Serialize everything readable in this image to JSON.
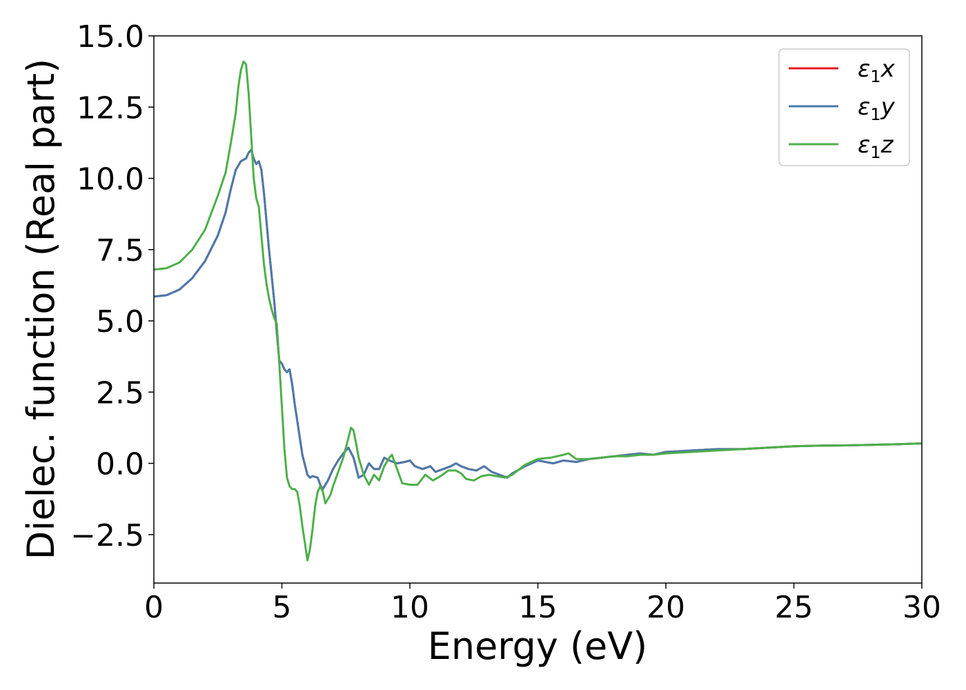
{
  "chart_data": {
    "type": "line",
    "title": "",
    "xlabel": "Energy (eV)",
    "ylabel": "Dielec. function (Real part)",
    "xlim": [
      0,
      30
    ],
    "ylim": [
      -4.2,
      15.0
    ],
    "xticks": [
      0,
      5,
      10,
      15,
      20,
      25,
      30
    ],
    "xtick_labels": [
      "0",
      "5",
      "10",
      "15",
      "20",
      "25",
      "30"
    ],
    "yticks": [
      -2.5,
      0.0,
      2.5,
      5.0,
      7.5,
      10.0,
      12.5,
      15.0
    ],
    "ytick_labels": [
      "−2.5",
      "0.0",
      "2.5",
      "5.0",
      "7.5",
      "10.0",
      "12.5",
      "15.0"
    ],
    "grid": false,
    "legend_position": "top-right",
    "series": [
      {
        "name": "ε1x",
        "legend_main": "ε",
        "legend_sub": "1",
        "legend_var": "x",
        "color": "#e41a1c",
        "x": [
          0.0,
          0.5,
          1.0,
          1.5,
          2.0,
          2.5,
          2.8,
          3.0,
          3.2,
          3.4,
          3.6,
          3.7,
          3.8,
          3.9,
          4.0,
          4.1,
          4.2,
          4.3,
          4.5,
          4.7,
          4.8,
          4.9,
          5.0,
          5.1,
          5.2,
          5.3,
          5.4,
          5.5,
          5.6,
          5.8,
          6.0,
          6.1,
          6.2,
          6.4,
          6.5,
          6.6,
          6.8,
          7.0,
          7.2,
          7.4,
          7.6,
          7.8,
          8.0,
          8.2,
          8.4,
          8.6,
          8.8,
          9.0,
          9.2,
          9.5,
          9.8,
          10.0,
          10.2,
          10.5,
          10.8,
          11.0,
          11.3,
          11.6,
          11.8,
          12.0,
          12.3,
          12.6,
          12.9,
          13.2,
          13.5,
          13.8,
          14.0,
          14.5,
          15.0,
          15.3,
          15.6,
          16.0,
          16.5,
          17.0,
          17.5,
          18.0,
          18.5,
          19.0,
          19.5,
          20.0,
          21.0,
          22.0,
          23.0,
          24.0,
          25.0,
          26.0,
          27.0,
          28.0,
          29.0,
          30.0
        ],
        "y": [
          5.85,
          5.9,
          6.1,
          6.5,
          7.1,
          8.0,
          8.8,
          9.6,
          10.3,
          10.6,
          10.7,
          10.9,
          11.0,
          10.7,
          10.5,
          10.6,
          10.3,
          9.5,
          7.5,
          5.7,
          4.6,
          3.6,
          3.5,
          3.3,
          3.2,
          3.3,
          2.8,
          2.1,
          1.5,
          0.3,
          -0.4,
          -0.5,
          -0.45,
          -0.5,
          -0.75,
          -0.9,
          -0.6,
          -0.2,
          0.1,
          0.35,
          0.55,
          0.2,
          -0.5,
          -0.4,
          0.0,
          -0.2,
          -0.2,
          0.2,
          0.1,
          0.0,
          0.05,
          0.1,
          -0.1,
          -0.2,
          -0.1,
          -0.3,
          -0.2,
          -0.1,
          0.0,
          -0.1,
          -0.2,
          -0.25,
          -0.1,
          -0.3,
          -0.4,
          -0.5,
          -0.35,
          -0.1,
          0.1,
          0.05,
          0.0,
          0.1,
          0.05,
          0.15,
          0.2,
          0.25,
          0.3,
          0.35,
          0.3,
          0.4,
          0.45,
          0.5,
          0.5,
          0.55,
          0.6,
          0.62,
          0.63,
          0.65,
          0.67,
          0.7
        ]
      },
      {
        "name": "ε1y",
        "legend_main": "ε",
        "legend_sub": "1",
        "legend_var": "y",
        "color": "#4a7aab",
        "x": [
          0.0,
          0.5,
          1.0,
          1.5,
          2.0,
          2.5,
          2.8,
          3.0,
          3.2,
          3.4,
          3.6,
          3.7,
          3.8,
          3.9,
          4.0,
          4.1,
          4.2,
          4.3,
          4.5,
          4.7,
          4.8,
          4.9,
          5.0,
          5.1,
          5.2,
          5.3,
          5.4,
          5.5,
          5.6,
          5.8,
          6.0,
          6.1,
          6.2,
          6.4,
          6.5,
          6.6,
          6.8,
          7.0,
          7.2,
          7.4,
          7.6,
          7.8,
          8.0,
          8.2,
          8.4,
          8.6,
          8.8,
          9.0,
          9.2,
          9.5,
          9.8,
          10.0,
          10.2,
          10.5,
          10.8,
          11.0,
          11.3,
          11.6,
          11.8,
          12.0,
          12.3,
          12.6,
          12.9,
          13.2,
          13.5,
          13.8,
          14.0,
          14.5,
          15.0,
          15.3,
          15.6,
          16.0,
          16.5,
          17.0,
          17.5,
          18.0,
          18.5,
          19.0,
          19.5,
          20.0,
          21.0,
          22.0,
          23.0,
          24.0,
          25.0,
          26.0,
          27.0,
          28.0,
          29.0,
          30.0
        ],
        "y": [
          5.85,
          5.9,
          6.1,
          6.5,
          7.1,
          8.0,
          8.8,
          9.6,
          10.3,
          10.6,
          10.7,
          10.9,
          11.0,
          10.7,
          10.5,
          10.6,
          10.3,
          9.5,
          7.5,
          5.7,
          4.6,
          3.6,
          3.5,
          3.3,
          3.2,
          3.3,
          2.8,
          2.1,
          1.5,
          0.3,
          -0.4,
          -0.5,
          -0.45,
          -0.5,
          -0.75,
          -0.9,
          -0.6,
          -0.2,
          0.1,
          0.35,
          0.55,
          0.2,
          -0.5,
          -0.4,
          0.0,
          -0.2,
          -0.2,
          0.2,
          0.1,
          0.0,
          0.05,
          0.1,
          -0.1,
          -0.2,
          -0.1,
          -0.3,
          -0.2,
          -0.1,
          0.0,
          -0.1,
          -0.2,
          -0.25,
          -0.1,
          -0.3,
          -0.4,
          -0.5,
          -0.35,
          -0.1,
          0.1,
          0.05,
          0.0,
          0.1,
          0.05,
          0.15,
          0.2,
          0.25,
          0.3,
          0.35,
          0.3,
          0.4,
          0.45,
          0.5,
          0.5,
          0.55,
          0.6,
          0.62,
          0.63,
          0.65,
          0.67,
          0.7
        ]
      },
      {
        "name": "ε1z",
        "legend_main": "ε",
        "legend_sub": "1",
        "legend_var": "z",
        "color": "#4daf4a",
        "x": [
          0.0,
          0.5,
          1.0,
          1.5,
          2.0,
          2.5,
          2.8,
          3.0,
          3.2,
          3.3,
          3.4,
          3.5,
          3.6,
          3.7,
          3.8,
          3.9,
          4.0,
          4.1,
          4.2,
          4.3,
          4.4,
          4.5,
          4.6,
          4.7,
          4.8,
          4.9,
          5.0,
          5.1,
          5.2,
          5.3,
          5.4,
          5.5,
          5.6,
          5.7,
          5.8,
          5.9,
          6.0,
          6.1,
          6.2,
          6.3,
          6.4,
          6.5,
          6.6,
          6.7,
          6.9,
          7.0,
          7.2,
          7.4,
          7.6,
          7.7,
          7.8,
          7.9,
          8.0,
          8.2,
          8.4,
          8.6,
          8.8,
          9.0,
          9.2,
          9.3,
          9.5,
          9.7,
          10.0,
          10.3,
          10.6,
          10.9,
          11.2,
          11.5,
          11.8,
          12.0,
          12.2,
          12.5,
          12.8,
          13.1,
          13.4,
          13.7,
          14.0,
          14.5,
          15.0,
          15.5,
          16.0,
          16.2,
          16.5,
          17.0,
          17.5,
          18.0,
          18.5,
          19.0,
          19.5,
          20.0,
          21.0,
          22.0,
          23.0,
          24.0,
          25.0,
          26.0,
          27.0,
          28.0,
          29.0,
          30.0
        ],
        "y": [
          6.8,
          6.85,
          7.05,
          7.5,
          8.2,
          9.4,
          10.2,
          11.2,
          12.3,
          13.2,
          13.8,
          14.1,
          14.0,
          13.0,
          11.5,
          10.0,
          9.3,
          9.0,
          8.0,
          7.0,
          6.3,
          5.8,
          5.4,
          5.1,
          4.9,
          3.5,
          2.0,
          0.5,
          -0.5,
          -0.8,
          -0.9,
          -0.9,
          -1.0,
          -1.5,
          -2.2,
          -2.8,
          -3.4,
          -3.0,
          -2.3,
          -1.5,
          -1.0,
          -0.8,
          -1.0,
          -1.4,
          -1.1,
          -0.8,
          -0.3,
          0.2,
          0.9,
          1.25,
          1.15,
          0.7,
          0.2,
          -0.4,
          -0.75,
          -0.4,
          -0.6,
          -0.1,
          0.2,
          0.3,
          -0.2,
          -0.7,
          -0.75,
          -0.75,
          -0.4,
          -0.6,
          -0.45,
          -0.25,
          -0.25,
          -0.35,
          -0.55,
          -0.6,
          -0.45,
          -0.4,
          -0.45,
          -0.5,
          -0.4,
          -0.05,
          0.15,
          0.2,
          0.3,
          0.35,
          0.15,
          0.15,
          0.2,
          0.25,
          0.25,
          0.3,
          0.3,
          0.35,
          0.4,
          0.45,
          0.5,
          0.55,
          0.6,
          0.62,
          0.63,
          0.65,
          0.67,
          0.7
        ]
      }
    ]
  }
}
